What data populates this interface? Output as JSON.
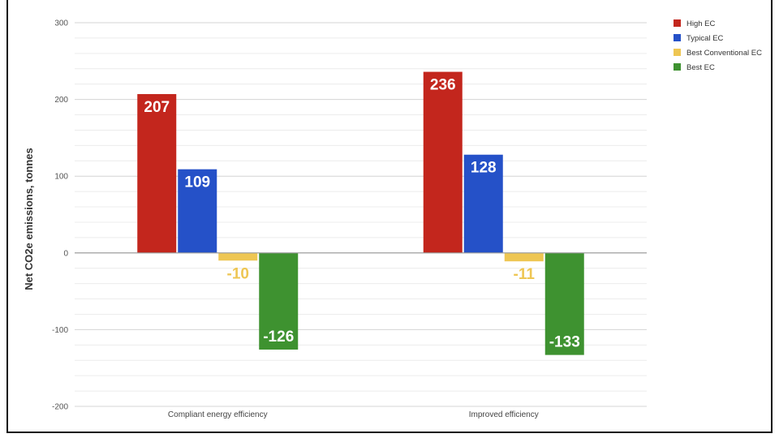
{
  "chart_data": {
    "type": "bar",
    "title": "",
    "xlabel": "",
    "ylabel": "Net CO2e emissions, tonnes",
    "ylim": [
      -200,
      300
    ],
    "yticks": [
      300,
      200,
      100,
      0,
      -100,
      -200
    ],
    "grid": true,
    "legend_position": "top-right",
    "categories": [
      "Compliant energy efficiency",
      "Improved efficiency"
    ],
    "series": [
      {
        "name": "High EC",
        "color": "#c3261d",
        "values": [
          207,
          236
        ],
        "label_color": "#ffffff"
      },
      {
        "name": "Typical EC",
        "color": "#2551c8",
        "values": [
          109,
          128
        ],
        "label_color": "#ffffff"
      },
      {
        "name": "Best Conventional EC",
        "color": "#eec653",
        "values": [
          -10,
          -11
        ],
        "label_color": "#eec653"
      },
      {
        "name": "Best EC",
        "color": "#3e9230",
        "values": [
          -126,
          -133
        ],
        "label_color": "#ffffff"
      }
    ]
  }
}
